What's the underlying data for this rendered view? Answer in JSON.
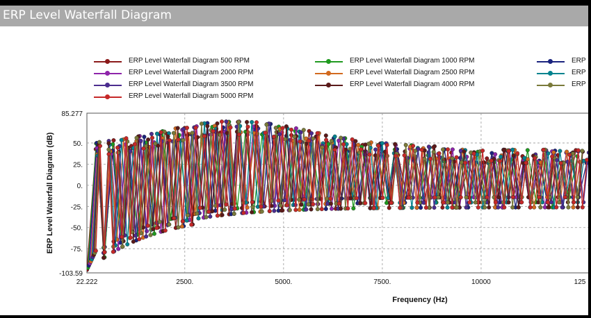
{
  "window": {
    "title": "ERP Level Waterfall Diagram"
  },
  "chart_data": {
    "type": "line",
    "xlabel": "Frequency (Hz)",
    "ylabel": "ERP Level Waterfall Diagram (dB)",
    "xlim": [
      22.222,
      12500
    ],
    "ylim": [
      -103.59,
      85.277
    ],
    "x_ticks": [
      "22.222",
      "2500.",
      "5000.",
      "7500.",
      "10000",
      "125"
    ],
    "y_ticks": [
      "85.277",
      "50.",
      "25.",
      "0.",
      "-25.",
      "-50.",
      "-75.",
      "-103.59"
    ],
    "grid": true,
    "legend_placement": "top",
    "series": [
      {
        "name": "ERP Level Waterfall Diagram 500 RPM",
        "color": "#8b1a1a",
        "spacing": 450
      },
      {
        "name": "ERP Level Waterfall Diagram 1000 RPM",
        "color": "#1f9a1f",
        "spacing": 420
      },
      {
        "name": "ERP",
        "color": "#1a237e",
        "spacing": 400
      },
      {
        "name": "ERP Level Waterfall Diagram 2000 RPM",
        "color": "#8e24aa",
        "spacing": 360
      },
      {
        "name": "ERP Level Waterfall Diagram 2500 RPM",
        "color": "#d2691e",
        "spacing": 330
      },
      {
        "name": "ERP",
        "color": "#00838f",
        "spacing": 300
      },
      {
        "name": "ERP Level Waterfall Diagram 3500 RPM",
        "color": "#4b2c8f",
        "spacing": 270
      },
      {
        "name": "ERP Level Waterfall Diagram 4000 RPM",
        "color": "#5a1a1a",
        "spacing": 250
      },
      {
        "name": "ERP",
        "color": "#7a7a3a",
        "spacing": 235
      },
      {
        "name": "ERP Level Waterfall Diagram 5000 RPM",
        "color": "#c62828",
        "spacing": 220
      }
    ]
  }
}
